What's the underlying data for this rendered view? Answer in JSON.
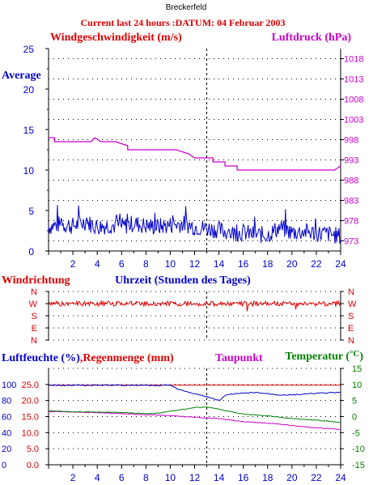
{
  "header": {
    "station": "Breckerfeld",
    "title": "Current last 24 hours :DATUM: 04 Februar 2003"
  },
  "colors": {
    "wind": "#0000cc",
    "pressure": "#cc00cc",
    "title": "#dd0000",
    "direction": "#dd0000",
    "humidity": "#0000cc",
    "rain": "#dd0000",
    "dewpoint": "#cc00cc",
    "temperature": "#008000",
    "grid": "#000000"
  },
  "chart_data": [
    {
      "type": "line",
      "ylabel": "Windgeschwindigkeit (m/s)",
      "y2label": "Luftdruck (hPa)",
      "xlabel": "Uhrzeit (Stunden des Tages)",
      "annotation": "Average",
      "ylim": [
        0,
        25
      ],
      "y_ticks": [
        "0",
        "5",
        "10",
        "15",
        "20",
        "25"
      ],
      "y2lim": [
        970.5,
        1020.5
      ],
      "y2_ticks": [
        "973",
        "978",
        "983",
        "988",
        "993",
        "998",
        "1003",
        "1008",
        "1013",
        "1018"
      ],
      "x_ticks": [
        "2",
        "4",
        "6",
        "8",
        "10",
        "12",
        "14",
        "16",
        "18",
        "20",
        "22",
        "24"
      ],
      "xlim": [
        0,
        24
      ],
      "marker_hour": 13,
      "series": [
        {
          "axis": "left",
          "x": [
            0,
            1,
            2,
            3,
            4,
            5,
            6,
            7,
            8,
            9,
            10,
            11,
            12,
            13,
            14,
            15,
            16,
            17,
            18,
            19,
            20,
            21,
            22,
            23,
            24
          ],
          "values": [
            3.0,
            3.3,
            3.1,
            3.6,
            3.0,
            3.2,
            3.0,
            3.4,
            3.1,
            3.0,
            3.2,
            3.4,
            3.0,
            2.8,
            2.6,
            2.2,
            2.3,
            2.0,
            2.0,
            2.9,
            2.3,
            2.4,
            2.2,
            2.1,
            1.8
          ]
        },
        {
          "axis": "right",
          "x": [
            0,
            0.5,
            0.5,
            3.5,
            3.8,
            4.3,
            5.5,
            6.5,
            6.5,
            10.5,
            11.5,
            11.5,
            12.0,
            12.0,
            13.5,
            13.5,
            14.5,
            14.5,
            15.5,
            15.5,
            23.5,
            24
          ],
          "values": [
            998.5,
            998.5,
            997.5,
            997.5,
            998.5,
            997.5,
            997.5,
            996.5,
            995.5,
            995.5,
            994.5,
            994.5,
            993.5,
            993.5,
            993.5,
            992.5,
            992.5,
            991.5,
            991.5,
            990.5,
            990.5,
            991.5
          ]
        }
      ]
    },
    {
      "type": "line",
      "ylabel": "Windrichtung",
      "y_ticks": [
        "N",
        "W",
        "S",
        "E",
        "N"
      ],
      "x": [
        0,
        1,
        2,
        3,
        4,
        5,
        6,
        7,
        8,
        9,
        10,
        11,
        12,
        13,
        14,
        15,
        16,
        17,
        18,
        19,
        20,
        21,
        22,
        23,
        24
      ],
      "values": [
        "W",
        "W",
        "W",
        "W",
        "W",
        "W",
        "W",
        "W",
        "W",
        "W",
        "W",
        "W",
        "W",
        "W",
        "W",
        "W",
        "W",
        "W",
        "W",
        "W",
        "W",
        "W",
        "W",
        "W",
        "W"
      ]
    },
    {
      "type": "line",
      "labels": {
        "humidity": "Luftfeuchte (%)",
        "rain": "Regenmenge (mm)",
        "dewpoint": "Taupunkt",
        "temperature": "Temperatur (",
        "temperature_unit": "°C",
        "temperature_end": ")"
      },
      "y_ticks_humidity": [
        "0",
        "20",
        "40",
        "60",
        "80",
        "100"
      ],
      "y_ticks_rain": [
        "0.0",
        "5.0",
        "10.0",
        "15.0",
        "20.0",
        "25.0"
      ],
      "y2_ticks": [
        "-15",
        "-10",
        "-5",
        "0",
        "5",
        "10",
        "15"
      ],
      "y2lim": [
        -15,
        15
      ],
      "x_ticks": [
        "2",
        "4",
        "6",
        "8",
        "10",
        "12",
        "14",
        "16",
        "18",
        "20",
        "22",
        "24"
      ],
      "series": [
        {
          "key": "humidity",
          "x": [
            0,
            10.0,
            10.5,
            11.5,
            13.0,
            14.0,
            14.5,
            15.0,
            17.0,
            19.0,
            20.0,
            22.0,
            24.0
          ],
          "values": [
            99,
            99,
            95,
            90,
            85,
            80,
            86,
            88,
            90,
            87,
            87,
            89,
            90
          ]
        },
        {
          "key": "rain",
          "x": [
            0,
            24
          ],
          "values": [
            24.8,
            24.8
          ]
        },
        {
          "key": "dewpoint",
          "x": [
            0,
            4,
            8,
            10,
            12,
            14,
            16,
            18,
            20,
            22,
            24
          ],
          "values": [
            1.6,
            1.2,
            0.6,
            0.3,
            -0.2,
            -0.6,
            -1.6,
            -2.0,
            -2.8,
            -3.5,
            -4.0
          ]
        },
        {
          "key": "temperature",
          "x": [
            0,
            2,
            4,
            6,
            8,
            9,
            10,
            11,
            12,
            13,
            14,
            15,
            16,
            18,
            20,
            22,
            24
          ],
          "values": [
            1.8,
            1.5,
            1.4,
            1.3,
            0.9,
            1.1,
            1.7,
            2.2,
            2.8,
            3.0,
            2.3,
            1.5,
            0.8,
            0.2,
            -0.6,
            -1.1,
            -1.8
          ]
        }
      ]
    }
  ]
}
